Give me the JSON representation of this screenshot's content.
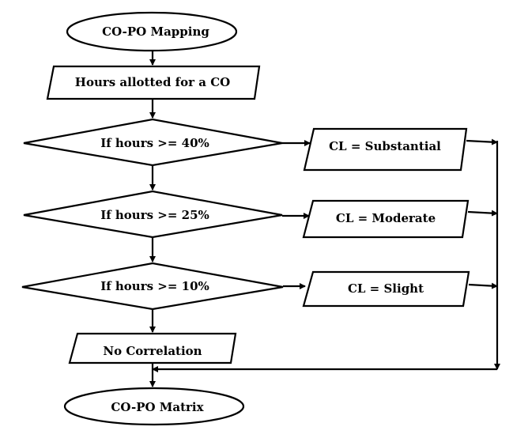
{
  "flowchart": {
    "start": "CO-PO Mapping",
    "input": "Hours allotted for a CO",
    "decisions": [
      {
        "condition": "If hours >= 40%",
        "outcome": "CL = Substantial"
      },
      {
        "condition": "If hours >= 25%",
        "outcome": "CL = Moderate"
      },
      {
        "condition": "If hours >= 10%",
        "outcome": "CL = Slight"
      }
    ],
    "fallback": "No Correlation",
    "end": "CO-PO Matrix"
  },
  "colors": {
    "stroke": "#000000",
    "fill": "#ffffff",
    "text": "#000000"
  }
}
